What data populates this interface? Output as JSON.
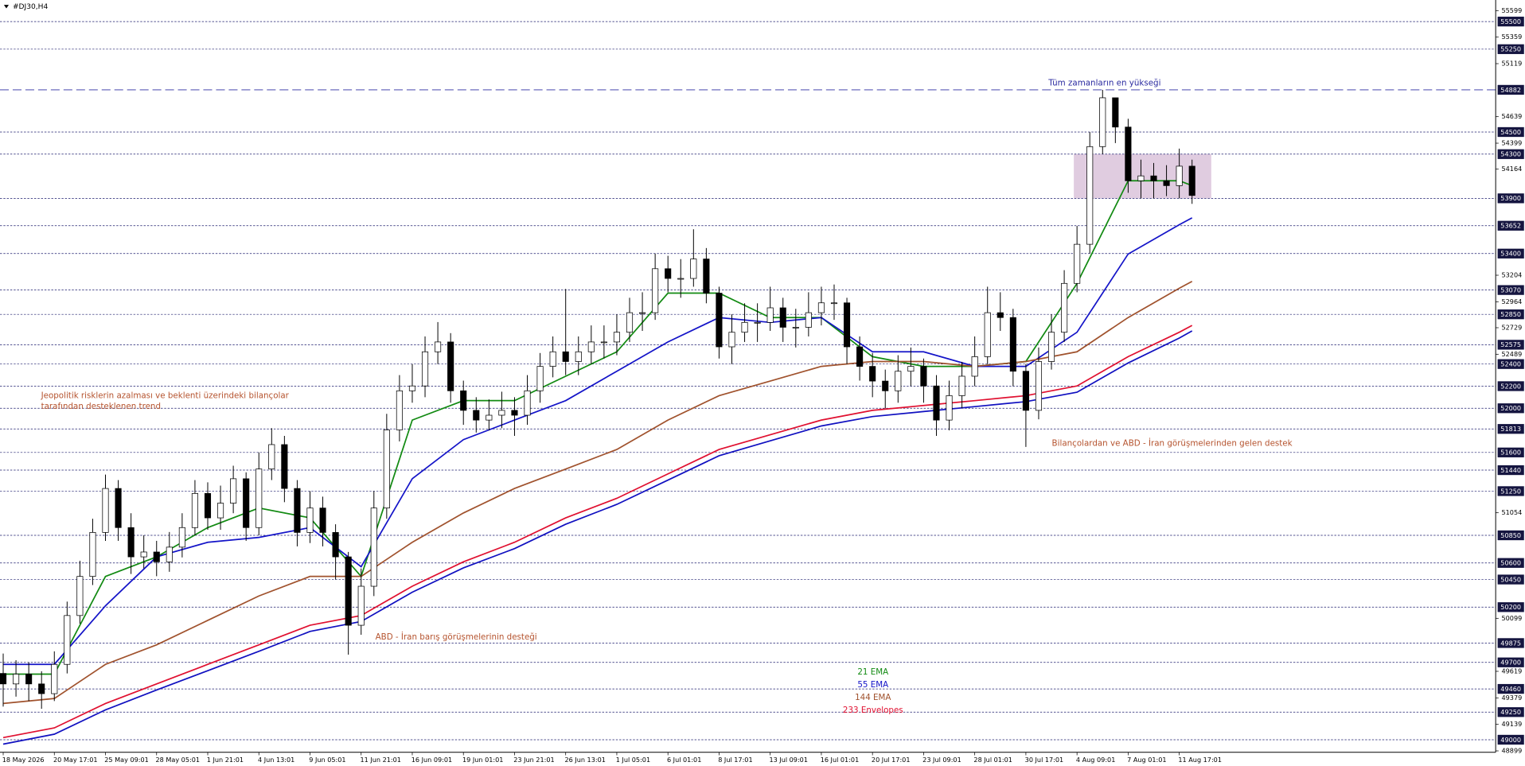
{
  "header": {
    "symbol": "#DJ30,H4"
  },
  "chart_data": {
    "type": "candlestick",
    "xlim": [
      -1,
      467
    ],
    "ylim": [
      48886,
      55695
    ],
    "xticks": [
      {
        "value": 0,
        "label": "18 May 2026"
      },
      {
        "value": 16,
        "label": "20 May 17:01"
      },
      {
        "value": 32,
        "label": "25 May 09:01"
      },
      {
        "value": 48,
        "label": "28 May 05:01"
      },
      {
        "value": 64,
        "label": "1 Jun 21:01"
      },
      {
        "value": 80,
        "label": "4 Jun 13:01"
      },
      {
        "value": 96,
        "label": "9 Jun 05:01"
      },
      {
        "value": 112,
        "label": "11 Jun 21:01"
      },
      {
        "value": 128,
        "label": "16 Jun 09:01"
      },
      {
        "value": 144,
        "label": "19 Jun 01:01"
      },
      {
        "value": 160,
        "label": "23 Jun 21:01"
      },
      {
        "value": 176,
        "label": "26 Jun 13:01"
      },
      {
        "value": 192,
        "label": "1 Jul 05:01"
      },
      {
        "value": 208,
        "label": "6 Jul 01:01"
      },
      {
        "value": 224,
        "label": "8 Jul 17:01"
      },
      {
        "value": 240,
        "label": "13 Jul 09:01"
      },
      {
        "value": 256,
        "label": "16 Jul 01:01"
      },
      {
        "value": 272,
        "label": "20 Jul 17:01"
      },
      {
        "value": 288,
        "label": "23 Jul 09:01"
      },
      {
        "value": 304,
        "label": "28 Jul 01:01"
      },
      {
        "value": 320,
        "label": "30 Jul 17:01"
      },
      {
        "value": 336,
        "label": "4 Aug 09:01"
      },
      {
        "value": 352,
        "label": "7 Aug 01:01"
      },
      {
        "value": 368,
        "label": "11 Aug 17:01"
      }
    ],
    "yticks": [
      55599,
      55359,
      55119,
      54639,
      54399,
      54164,
      53204,
      52964,
      52729,
      52489,
      51054,
      50099,
      49619,
      49379,
      49139,
      48899
    ],
    "levels": [
      55500,
      55250,
      54500,
      54300,
      53900,
      53652,
      53400,
      53070,
      52850,
      52575,
      52400,
      52200,
      52000,
      51813,
      51600,
      51440,
      51250,
      50850,
      50600,
      50450,
      50200,
      49875,
      49700,
      49460,
      49250,
      49000
    ],
    "level_color": "#1c1c6e",
    "ath": {
      "value": 54882,
      "label": "Tüm zamanların en yükseği",
      "color": "#2b2ba0"
    },
    "zone": {
      "x": [
        335,
        378
      ],
      "y": [
        53900,
        54300
      ],
      "color": "#d8bfd8"
    },
    "candles": {
      "x": [
        0,
        4,
        8,
        12,
        16,
        20,
        24,
        28,
        32,
        36,
        40,
        44,
        48,
        52,
        56,
        60,
        64,
        68,
        72,
        76,
        80,
        84,
        88,
        92,
        96,
        100,
        104,
        108,
        112,
        116,
        120,
        124,
        128,
        132,
        136,
        140,
        144,
        148,
        152,
        156,
        160,
        164,
        168,
        172,
        176,
        180,
        184,
        188,
        192,
        196,
        200,
        204,
        208,
        212,
        216,
        220,
        224,
        228,
        232,
        236,
        240,
        244,
        248,
        252,
        256,
        260,
        264,
        268,
        272,
        276,
        280,
        284,
        288,
        292,
        296,
        300,
        304,
        308,
        312,
        316,
        320,
        324,
        328,
        332,
        336,
        340,
        344,
        348,
        352,
        356,
        360,
        364,
        368,
        372
      ],
      "open": [
        49600,
        49505,
        49594,
        49505,
        49417,
        49682,
        50124,
        50478,
        50876,
        51274,
        50920,
        50655,
        50699,
        50610,
        50743,
        50920,
        51229,
        51008,
        51141,
        51362,
        50920,
        51450,
        51671,
        51274,
        50876,
        51097,
        50876,
        50655,
        50036,
        50389,
        51097,
        51804,
        52158,
        52202,
        52511,
        52600,
        52158,
        51981,
        51893,
        51937,
        51981,
        51937,
        52158,
        52379,
        52511,
        52423,
        52511,
        52600,
        52600,
        52688,
        52865,
        52865,
        53263,
        53175,
        53175,
        53351,
        53042,
        52556,
        52688,
        52777,
        52777,
        52909,
        52733,
        52733,
        52865,
        52954,
        52954,
        52556,
        52379,
        52246,
        52158,
        52335,
        52379,
        52202,
        51893,
        52114,
        52290,
        52467,
        52865,
        52821,
        52335,
        51981,
        52423,
        52688,
        53130,
        53484,
        54368,
        54810,
        54545,
        54059,
        54103,
        54059,
        54015,
        54191
      ],
      "high": [
        49780,
        49720,
        49700,
        49620,
        49800,
        50250,
        50620,
        51000,
        51400,
        51350,
        51050,
        50850,
        50800,
        50880,
        51050,
        51350,
        51330,
        51300,
        51480,
        51420,
        51600,
        51820,
        51750,
        51350,
        51250,
        51200,
        50950,
        50700,
        50550,
        51250,
        51950,
        52300,
        52400,
        52650,
        52780,
        52680,
        52250,
        52100,
        52080,
        52150,
        52100,
        52300,
        52500,
        52650,
        53080,
        52650,
        52750,
        52750,
        52850,
        53000,
        53050,
        53400,
        53380,
        53350,
        53620,
        53450,
        53100,
        52850,
        52950,
        52950,
        53100,
        53000,
        52900,
        53050,
        53100,
        53120,
        53000,
        52650,
        52500,
        52350,
        52480,
        52550,
        52450,
        52300,
        52250,
        52420,
        52650,
        53100,
        53050,
        52900,
        52400,
        52550,
        52850,
        53250,
        53650,
        54500,
        54882,
        54750,
        54620,
        54250,
        54220,
        54200,
        54350,
        54250
      ],
      "low": [
        49300,
        49390,
        49350,
        49280,
        49350,
        49600,
        50050,
        50400,
        50800,
        50800,
        50500,
        50550,
        50480,
        50520,
        50650,
        50850,
        50900,
        50900,
        51050,
        50800,
        50850,
        51350,
        51150,
        50750,
        50780,
        50750,
        50450,
        49770,
        49950,
        50300,
        51000,
        51700,
        52050,
        52100,
        52400,
        52050,
        51850,
        51780,
        51800,
        51820,
        51750,
        51850,
        52050,
        52280,
        52300,
        52300,
        52400,
        52450,
        52480,
        52600,
        52700,
        52800,
        53050,
        53000,
        53100,
        52950,
        52450,
        52400,
        52600,
        52600,
        52700,
        52600,
        52550,
        52650,
        52750,
        52800,
        52400,
        52250,
        52100,
        52000,
        52050,
        52200,
        52050,
        51750,
        51800,
        52000,
        52200,
        52400,
        52700,
        52200,
        51650,
        51900,
        52350,
        52600,
        53050,
        53400,
        54300,
        54400,
        53950,
        53900,
        53900,
        53920,
        53900,
        53850
      ],
      "close": [
        49505,
        49594,
        49505,
        49417,
        49682,
        50124,
        50478,
        50876,
        51274,
        50920,
        50655,
        50699,
        50610,
        50743,
        50920,
        51229,
        51008,
        51141,
        51362,
        50920,
        51450,
        51671,
        51274,
        50876,
        51097,
        50876,
        50655,
        50036,
        50389,
        51097,
        51804,
        52158,
        52202,
        52511,
        52600,
        52158,
        51981,
        51893,
        51937,
        51981,
        51937,
        52158,
        52379,
        52511,
        52423,
        52511,
        52600,
        52600,
        52688,
        52865,
        52865,
        53263,
        53175,
        53175,
        53351,
        53042,
        52556,
        52688,
        52777,
        52777,
        52909,
        52733,
        52733,
        52865,
        52954,
        52954,
        52556,
        52379,
        52246,
        52158,
        52335,
        52379,
        52202,
        51893,
        52114,
        52290,
        52467,
        52865,
        52821,
        52335,
        51981,
        52423,
        52688,
        53130,
        53484,
        54368,
        54810,
        54545,
        54059,
        54103,
        54059,
        54015,
        54191,
        53926
      ]
    },
    "lines": {
      "x": [
        0,
        16,
        32,
        48,
        64,
        80,
        96,
        112,
        128,
        144,
        160,
        176,
        192,
        208,
        224,
        240,
        256,
        272,
        288,
        304,
        320,
        336,
        352,
        368,
        372
      ],
      "series": [
        {
          "name": "21 EMA",
          "color": "#128a12",
          "values": [
            49594,
            49594,
            50478,
            50655,
            50920,
            51097,
            51008,
            50478,
            51893,
            52069,
            52069,
            52290,
            52511,
            53042,
            53042,
            52821,
            52821,
            52467,
            52379,
            52379,
            52423,
            53130,
            54059,
            54059,
            54015
          ]
        },
        {
          "name": "55 EMA",
          "color": "#1414c8",
          "values": [
            49682,
            49682,
            50212,
            50655,
            50787,
            50831,
            50920,
            50566,
            51362,
            51716,
            51893,
            52069,
            52335,
            52600,
            52821,
            52777,
            52821,
            52511,
            52511,
            52379,
            52379,
            52688,
            53396,
            53661,
            53723
          ]
        },
        {
          "name": "144 EMA",
          "color": "#a0522d",
          "values": [
            49328,
            49373,
            49682,
            49859,
            50080,
            50301,
            50478,
            50478,
            50787,
            51052,
            51274,
            51450,
            51627,
            51893,
            52114,
            52246,
            52379,
            52423,
            52423,
            52379,
            52423,
            52511,
            52821,
            53086,
            53148
          ]
        },
        {
          "name": "233 Envelopes",
          "color": "#e01030",
          "values": [
            49019,
            49107,
            49328,
            49505,
            49682,
            49859,
            50036,
            50124,
            50389,
            50610,
            50787,
            51008,
            51185,
            51406,
            51627,
            51760,
            51893,
            51981,
            52025,
            52069,
            52114,
            52202,
            52467,
            52688,
            52750
          ]
        },
        {
          "color": "#1010c0",
          "values": [
            48960,
            49050,
            49270,
            49450,
            49625,
            49800,
            49980,
            50070,
            50335,
            50555,
            50730,
            50950,
            51130,
            51350,
            51570,
            51705,
            51840,
            51925,
            51970,
            52015,
            52060,
            52145,
            52410,
            52635,
            52700
          ]
        }
      ]
    },
    "annotations": [
      {
        "lines": [
          "Jeopolitik risklerin azalması ve beklenti üzerindeki bilançolar",
          "tarafından desteklenen trend"
        ],
        "color": "#b5532e"
      },
      {
        "lines": [
          "ABD - İran barış görüşmelerinin desteği"
        ],
        "color": "#b5532e"
      },
      {
        "lines": [
          "Bilançolardan ve ABD - İran görüşmelerinden gelen destek"
        ],
        "color": "#b5532e"
      }
    ]
  }
}
